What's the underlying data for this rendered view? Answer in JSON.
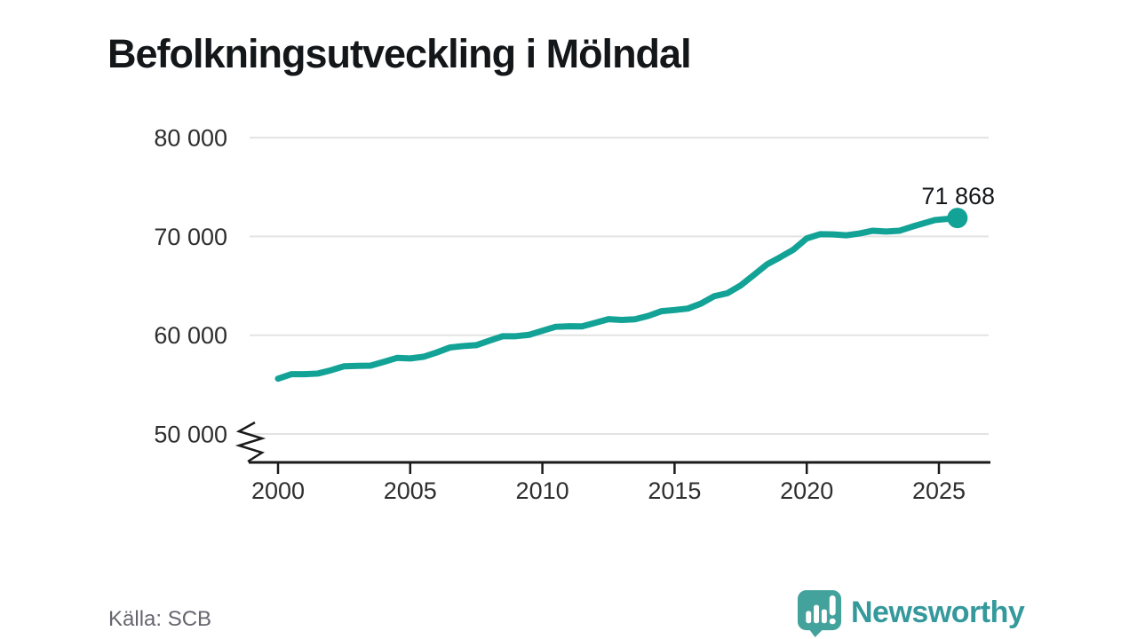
{
  "chart_data": {
    "type": "line",
    "title": "Befolkningsutveckling i Mölndal",
    "xlabel": "",
    "ylabel": "",
    "x": [
      2000,
      2001,
      2002,
      2003,
      2004,
      2005,
      2006,
      2007,
      2008,
      2009,
      2010,
      2011,
      2012,
      2013,
      2014,
      2015,
      2016,
      2017,
      2018,
      2019,
      2020,
      2021,
      2022,
      2023,
      2024,
      2025.7
    ],
    "values": [
      55600,
      56050,
      56450,
      56900,
      57300,
      57650,
      58250,
      58900,
      59450,
      59900,
      60450,
      60900,
      61250,
      61550,
      61950,
      62550,
      63200,
      64250,
      66100,
      67900,
      69800,
      70200,
      70300,
      70500,
      71000,
      71868
    ],
    "latest_value": 71868,
    "latest_label": "71 868",
    "y_ticks": [
      {
        "value": 80000,
        "label": "80 000"
      },
      {
        "value": 70000,
        "label": "70 000"
      },
      {
        "value": 60000,
        "label": "60 000"
      },
      {
        "value": 50000,
        "label": "50 000"
      }
    ],
    "x_ticks": [
      {
        "value": 2000,
        "label": "2000"
      },
      {
        "value": 2005,
        "label": "2005"
      },
      {
        "value": 2010,
        "label": "2010"
      },
      {
        "value": 2015,
        "label": "2015"
      },
      {
        "value": 2020,
        "label": "2020"
      },
      {
        "value": 2025,
        "label": "2025"
      }
    ],
    "ylim": [
      50000,
      80000
    ],
    "xlim": [
      1998.9,
      2026.9
    ],
    "axis_break": true,
    "grid": "horizontal",
    "legend": "none",
    "line_color": "#12A296"
  },
  "footer": {
    "source": "Källa: SCB",
    "brand": "Newsworthy"
  },
  "colors": {
    "line": "#12A296",
    "logo": "#44A29C",
    "wordmark": "#35999C",
    "grid": "#E3E3E3",
    "axis": "#1A1A1A",
    "text": "#2E2E2E",
    "muted": "#66666E"
  }
}
